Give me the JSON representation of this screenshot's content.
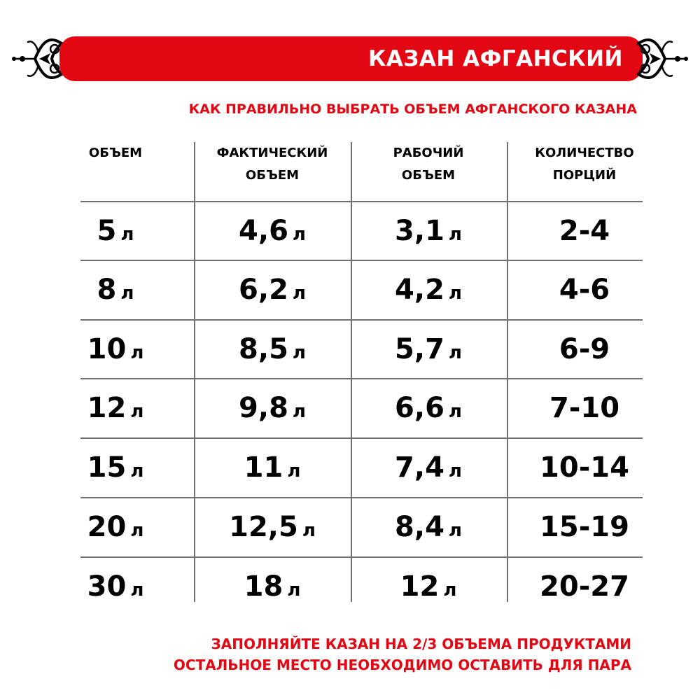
{
  "title": "КАЗАН АФГАНСКИЙ",
  "subtitle": "КАК ПРАВИЛЬНО ВЫБРАТЬ ОБЪЕМ АФГАНСКОГО КАЗАНА",
  "colors": {
    "accent": "#e30613",
    "text": "#000000",
    "grid": "#707070"
  },
  "icons": {
    "ornament": "ornament-scroll-icon"
  },
  "table": {
    "headers": [
      [
        "ОБЪЕМ",
        ""
      ],
      [
        "ФАКТИЧЕСКИЙ",
        "ОБЪЕМ"
      ],
      [
        "РАБОЧИЙ",
        "ОБЪЕМ"
      ],
      [
        "КОЛИЧЕСТВО",
        "ПОРЦИЙ"
      ]
    ],
    "unit": "л",
    "rows": [
      [
        "5",
        "4,6",
        "3,1",
        "2-4"
      ],
      [
        "8",
        "6,2",
        "4,2",
        "4-6"
      ],
      [
        "10",
        "8,5",
        "5,7",
        "6-9"
      ],
      [
        "12",
        "9,8",
        "6,6",
        "7-10"
      ],
      [
        "15",
        "11",
        "7,4",
        "10-14"
      ],
      [
        "20",
        "12,5",
        "8,4",
        "15-19"
      ],
      [
        "30",
        "18",
        "12",
        "20-27"
      ]
    ]
  },
  "footer": {
    "line1": "ЗАПОЛНЯЙТЕ КАЗАН НА 2/3 ОБЪЕМА ПРОДУКТАМИ",
    "line2": "ОСТАЛЬНОЕ МЕСТО НЕОБХОДИМО ОСТАВИТЬ ДЛЯ ПАРА"
  }
}
